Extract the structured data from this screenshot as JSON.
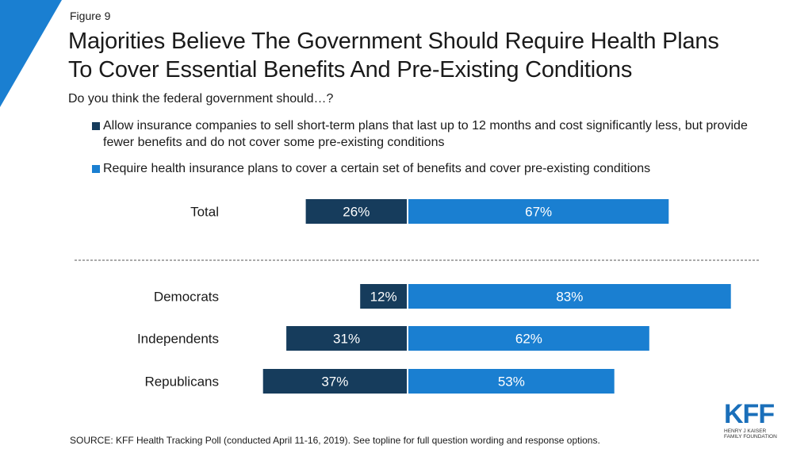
{
  "figure_label": "Figure 9",
  "title_line1": "Majorities Believe The Government Should Require Health Plans",
  "title_line2": "To Cover Essential Benefits And Pre-Existing Conditions",
  "subtitle": "Do you think the federal government should…?",
  "source": "SOURCE: KFF Health Tracking Poll (conducted April 11-16, 2019). See topline for full question wording and response options.",
  "logo": {
    "main": "KFF",
    "sub_line1": "HENRY J KAISER",
    "sub_line2": "FAMILY FOUNDATION"
  },
  "colors": {
    "allow": "#163c5c",
    "require": "#1a7fd1",
    "accent_corner": "#1a7fd1"
  },
  "chart_data": {
    "type": "bar",
    "orientation": "horizontal-diverging",
    "categories": [
      "Total",
      "Democrats",
      "Independents",
      "Republicans"
    ],
    "series": [
      {
        "name": "Allow insurance companies to sell short-term plans that last up to 12 months and cost significantly less, but provide fewer benefits and do not cover some pre-existing conditions",
        "values": [
          26,
          12,
          31,
          37
        ],
        "labels": [
          "26%",
          "12%",
          "31%",
          "37%"
        ],
        "color": "#163c5c"
      },
      {
        "name": "Require health insurance plans to cover a certain set of benefits and cover pre-existing conditions",
        "values": [
          67,
          83,
          62,
          53
        ],
        "labels": [
          "67%",
          "83%",
          "62%",
          "53%"
        ],
        "color": "#1a7fd1"
      }
    ],
    "legend_position": "top",
    "divider_after": "Total",
    "units": "percent"
  }
}
